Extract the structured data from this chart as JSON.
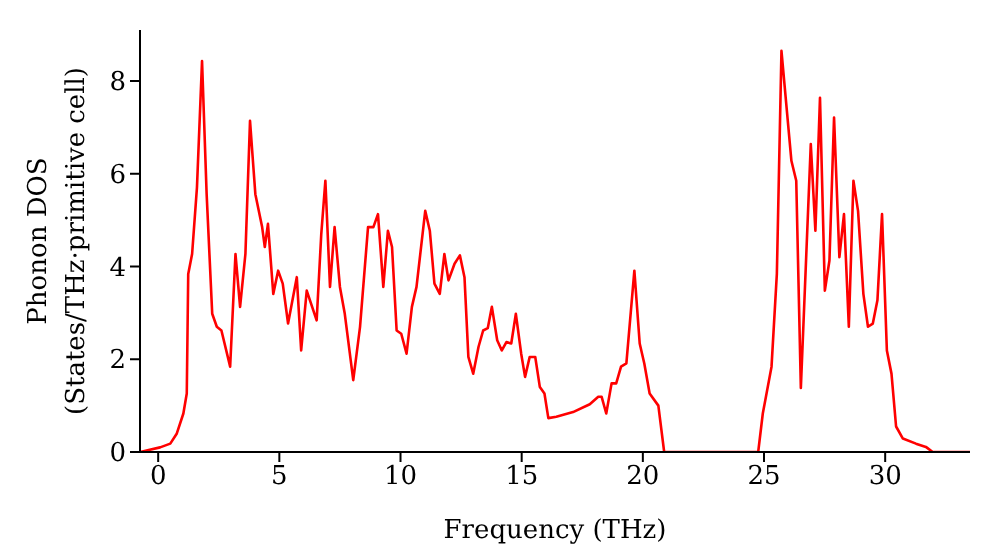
{
  "chart_data": {
    "type": "line",
    "xlabel": "Frequency (THz)",
    "ylabel": "Phonon DOS\n(States/THz·primitive cell)",
    "xlim": [
      -0.75,
      33.5
    ],
    "ylim": [
      0,
      9.1
    ],
    "xticks": [
      0,
      5,
      10,
      15,
      20,
      25,
      30
    ],
    "yticks": [
      0,
      2,
      4,
      6,
      8
    ],
    "grid": false,
    "legend": false,
    "marker": "none",
    "line_style": "solid",
    "series": [
      {
        "color": "#ff0000",
        "x": [
          -0.75,
          0.08,
          0.5,
          0.77,
          1.04,
          1.18,
          1.24,
          1.4,
          1.6,
          1.81,
          2.0,
          2.23,
          2.42,
          2.61,
          2.97,
          3.19,
          3.38,
          3.6,
          3.79,
          4.01,
          4.29,
          4.4,
          4.53,
          4.75,
          4.95,
          5.14,
          5.36,
          5.72,
          5.9,
          6.13,
          6.54,
          6.73,
          6.9,
          7.09,
          7.28,
          7.5,
          7.7,
          8.05,
          8.33,
          8.66,
          8.88,
          9.07,
          9.29,
          9.48,
          9.65,
          9.84,
          10.03,
          10.25,
          10.47,
          10.66,
          11.02,
          11.21,
          11.4,
          11.62,
          11.81,
          11.98,
          12.23,
          12.45,
          12.64,
          12.8,
          13.0,
          13.22,
          13.41,
          13.6,
          13.77,
          13.99,
          14.18,
          14.37,
          14.57,
          14.76,
          14.98,
          15.14,
          15.33,
          15.56,
          15.75,
          15.94,
          16.1,
          16.43,
          17.12,
          17.81,
          18.16,
          18.3,
          18.49,
          18.71,
          18.9,
          19.1,
          19.32,
          19.65,
          19.87,
          20.06,
          20.28,
          20.64,
          20.88,
          24.76,
          24.95,
          25.31,
          25.53,
          25.72,
          26.13,
          26.33,
          26.52,
          26.93,
          27.12,
          27.31,
          27.51,
          27.7,
          27.89,
          28.11,
          28.3,
          28.5,
          28.69,
          28.88,
          29.1,
          29.29,
          29.49,
          29.68,
          29.87,
          30.07,
          30.26,
          30.45,
          30.73,
          31.27,
          31.68,
          31.96,
          33.5
        ],
        "values": [
          0,
          0.1,
          0.18,
          0.4,
          0.83,
          1.26,
          3.84,
          4.27,
          5.7,
          8.43,
          5.56,
          2.98,
          2.7,
          2.62,
          1.84,
          4.27,
          3.13,
          4.27,
          7.14,
          5.56,
          4.85,
          4.42,
          4.92,
          3.41,
          3.91,
          3.63,
          2.77,
          3.77,
          2.19,
          3.48,
          2.84,
          4.7,
          5.85,
          3.56,
          4.85,
          3.56,
          2.98,
          1.55,
          2.7,
          4.85,
          4.85,
          5.13,
          3.56,
          4.77,
          4.42,
          2.62,
          2.55,
          2.12,
          3.13,
          3.56,
          5.2,
          4.77,
          3.63,
          3.41,
          4.27,
          3.7,
          4.06,
          4.24,
          3.77,
          2.05,
          1.69,
          2.27,
          2.62,
          2.67,
          3.13,
          2.41,
          2.19,
          2.37,
          2.34,
          2.98,
          2.12,
          1.62,
          2.05,
          2.05,
          1.4,
          1.26,
          0.73,
          0.76,
          0.86,
          1.03,
          1.19,
          1.19,
          0.83,
          1.48,
          1.48,
          1.84,
          1.91,
          3.91,
          2.34,
          1.91,
          1.26,
          1.0,
          0,
          0,
          0.83,
          1.84,
          3.84,
          8.65,
          6.28,
          5.85,
          1.38,
          6.64,
          4.77,
          7.64,
          3.48,
          4.13,
          7.21,
          4.2,
          5.13,
          2.7,
          5.85,
          5.2,
          3.41,
          2.7,
          2.77,
          3.27,
          5.13,
          2.19,
          1.69,
          0.55,
          0.29,
          0.18,
          0.11,
          0,
          0
        ]
      }
    ]
  }
}
